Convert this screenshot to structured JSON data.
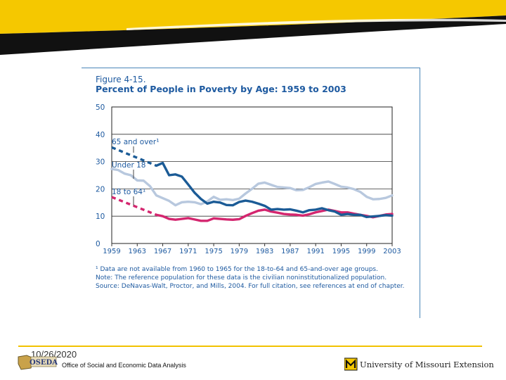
{
  "footer": {
    "date": "10/26/2020",
    "org": "Office of Social and Economic Data Analysis",
    "oseda": "OSEDA",
    "mu": "University of Missouri Extension"
  },
  "colors": {
    "banner_yellow": "#f5c800",
    "banner_black": "#111111",
    "title_blue": "#1e5aa0",
    "series_65": "#1b5b96",
    "series_under18": "#b8c8de",
    "series_18_64": "#d4266f"
  },
  "chart_data": {
    "type": "line",
    "figure_label": "Figure 4-15.",
    "title": "Percent of People in Poverty by Age:  1959 to 2003",
    "ylim": [
      0,
      50
    ],
    "yticks": [
      "50",
      "40",
      "30",
      "20",
      "10",
      "0"
    ],
    "xlim": [
      1959,
      2003
    ],
    "xticks": [
      "1959",
      "1963",
      "1967",
      "1971",
      "1975",
      "1979",
      "1983",
      "1987",
      "1991",
      "1995",
      "1999",
      "2003"
    ],
    "grid": true,
    "series": [
      {
        "name": "65 and over",
        "label": "65 and over¹",
        "color": "#1b5b96",
        "dashed": {
          "x": [
            1959,
            1966
          ],
          "y": [
            35.2,
            28.5
          ]
        },
        "x": [
          1966,
          1967,
          1968,
          1969,
          1970,
          1971,
          1972,
          1973,
          1974,
          1975,
          1976,
          1977,
          1978,
          1979,
          1980,
          1981,
          1982,
          1983,
          1984,
          1985,
          1986,
          1987,
          1988,
          1989,
          1990,
          1991,
          1992,
          1993,
          1994,
          1995,
          1996,
          1997,
          1998,
          1999,
          2000,
          2001,
          2002,
          2003
        ],
        "y": [
          28.5,
          29.5,
          25.0,
          25.3,
          24.5,
          21.6,
          18.6,
          16.3,
          14.6,
          15.3,
          15.0,
          14.1,
          14.0,
          15.2,
          15.7,
          15.3,
          14.6,
          13.8,
          12.4,
          12.6,
          12.4,
          12.5,
          12.0,
          11.4,
          12.2,
          12.4,
          12.9,
          12.2,
          11.7,
          10.5,
          10.8,
          10.5,
          10.5,
          9.7,
          9.9,
          10.1,
          10.4,
          10.2
        ]
      },
      {
        "name": "Under 18",
        "label": "Under 18",
        "color": "#b8c8de",
        "x": [
          1959,
          1960,
          1961,
          1962,
          1963,
          1964,
          1965,
          1966,
          1967,
          1968,
          1969,
          1970,
          1971,
          1972,
          1973,
          1974,
          1975,
          1976,
          1977,
          1978,
          1979,
          1980,
          1981,
          1982,
          1983,
          1984,
          1985,
          1986,
          1987,
          1988,
          1989,
          1990,
          1991,
          1992,
          1993,
          1994,
          1995,
          1996,
          1997,
          1998,
          1999,
          2000,
          2001,
          2002,
          2003
        ],
        "y": [
          27.3,
          26.9,
          25.6,
          25.0,
          23.1,
          23.0,
          21.0,
          17.6,
          16.6,
          15.6,
          14.0,
          15.1,
          15.3,
          15.1,
          14.4,
          15.4,
          17.1,
          16.0,
          16.2,
          15.9,
          16.4,
          18.3,
          20.0,
          21.9,
          22.3,
          21.5,
          20.7,
          20.5,
          20.3,
          19.5,
          19.6,
          20.6,
          21.8,
          22.3,
          22.7,
          21.8,
          20.8,
          20.5,
          19.9,
          18.9,
          17.1,
          16.2,
          16.3,
          16.7,
          17.6
        ]
      },
      {
        "name": "18 to 64",
        "label": "18 to 64¹",
        "color": "#d4266f",
        "dashed": {
          "x": [
            1959,
            1966
          ],
          "y": [
            17.0,
            10.5
          ]
        },
        "x": [
          1966,
          1967,
          1968,
          1969,
          1970,
          1971,
          1972,
          1973,
          1974,
          1975,
          1976,
          1977,
          1978,
          1979,
          1980,
          1981,
          1982,
          1983,
          1984,
          1985,
          1986,
          1987,
          1988,
          1989,
          1990,
          1991,
          1992,
          1993,
          1994,
          1995,
          1996,
          1997,
          1998,
          1999,
          2000,
          2001,
          2002,
          2003
        ],
        "y": [
          10.5,
          10.0,
          9.0,
          8.7,
          9.0,
          9.3,
          8.8,
          8.3,
          8.3,
          9.2,
          9.0,
          8.8,
          8.7,
          8.9,
          10.1,
          11.1,
          12.0,
          12.4,
          11.7,
          11.3,
          10.8,
          10.6,
          10.5,
          10.2,
          10.7,
          11.4,
          11.9,
          12.4,
          11.9,
          11.4,
          11.4,
          10.9,
          10.5,
          10.1,
          9.6,
          10.1,
          10.6,
          10.8
        ]
      }
    ],
    "notes": [
      "¹ Data are not available from 1960 to 1965 for the 18-to-64 and 65-and-over age groups.",
      "Note: The reference population for these data is the civilian noninstitutionalized population.",
      "Source: DeNavas-Walt, Proctor, and Mills, 2004.  For full citation, see references at end of chapter."
    ]
  }
}
